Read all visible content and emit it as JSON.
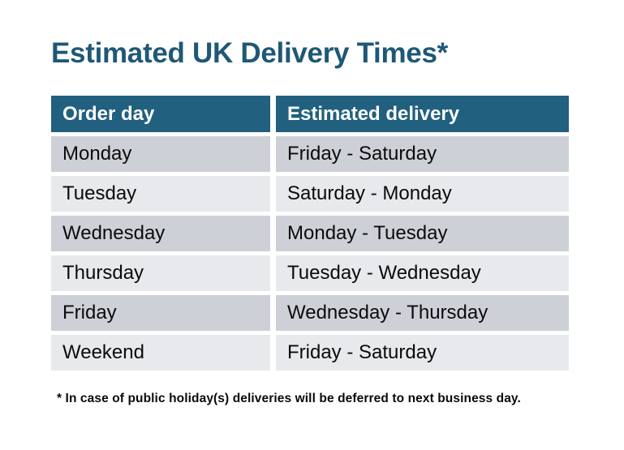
{
  "page": {
    "title": "Estimated UK Delivery Times*",
    "footnote": "* In case of public holiday(s) deliveries will be deferred to next business day."
  },
  "table": {
    "headers": {
      "order_day": "Order day",
      "delivery": "Estimated delivery"
    },
    "rows": [
      {
        "order_day": "Monday",
        "delivery": "Friday - Saturday"
      },
      {
        "order_day": "Tuesday",
        "delivery": "Saturday - Monday"
      },
      {
        "order_day": "Wednesday",
        "delivery": "Monday - Tuesday"
      },
      {
        "order_day": "Thursday",
        "delivery": "Tuesday - Wednesday"
      },
      {
        "order_day": "Friday",
        "delivery": "Wednesday - Thursday"
      },
      {
        "order_day": "Weekend",
        "delivery": "Friday - Saturday"
      }
    ]
  },
  "chart_data": {
    "type": "table",
    "title": "Estimated UK Delivery Times*",
    "columns": [
      "Order day",
      "Estimated delivery"
    ],
    "rows": [
      [
        "Monday",
        "Friday - Saturday"
      ],
      [
        "Tuesday",
        "Saturday - Monday"
      ],
      [
        "Wednesday",
        "Monday - Tuesday"
      ],
      [
        "Thursday",
        "Tuesday - Wednesday"
      ],
      [
        "Friday",
        "Wednesday - Thursday"
      ],
      [
        "Weekend",
        "Friday - Saturday"
      ]
    ],
    "footnote": "* In case of public holiday(s) deliveries will be deferred to next business day."
  },
  "colors": {
    "header_bg": "#21607F",
    "header_text": "#FFFFFF",
    "title_text": "#1E5876",
    "row_dark": "#CDD1D7",
    "row_light": "#E7E9EC",
    "body_text": "#0B0B0B"
  }
}
